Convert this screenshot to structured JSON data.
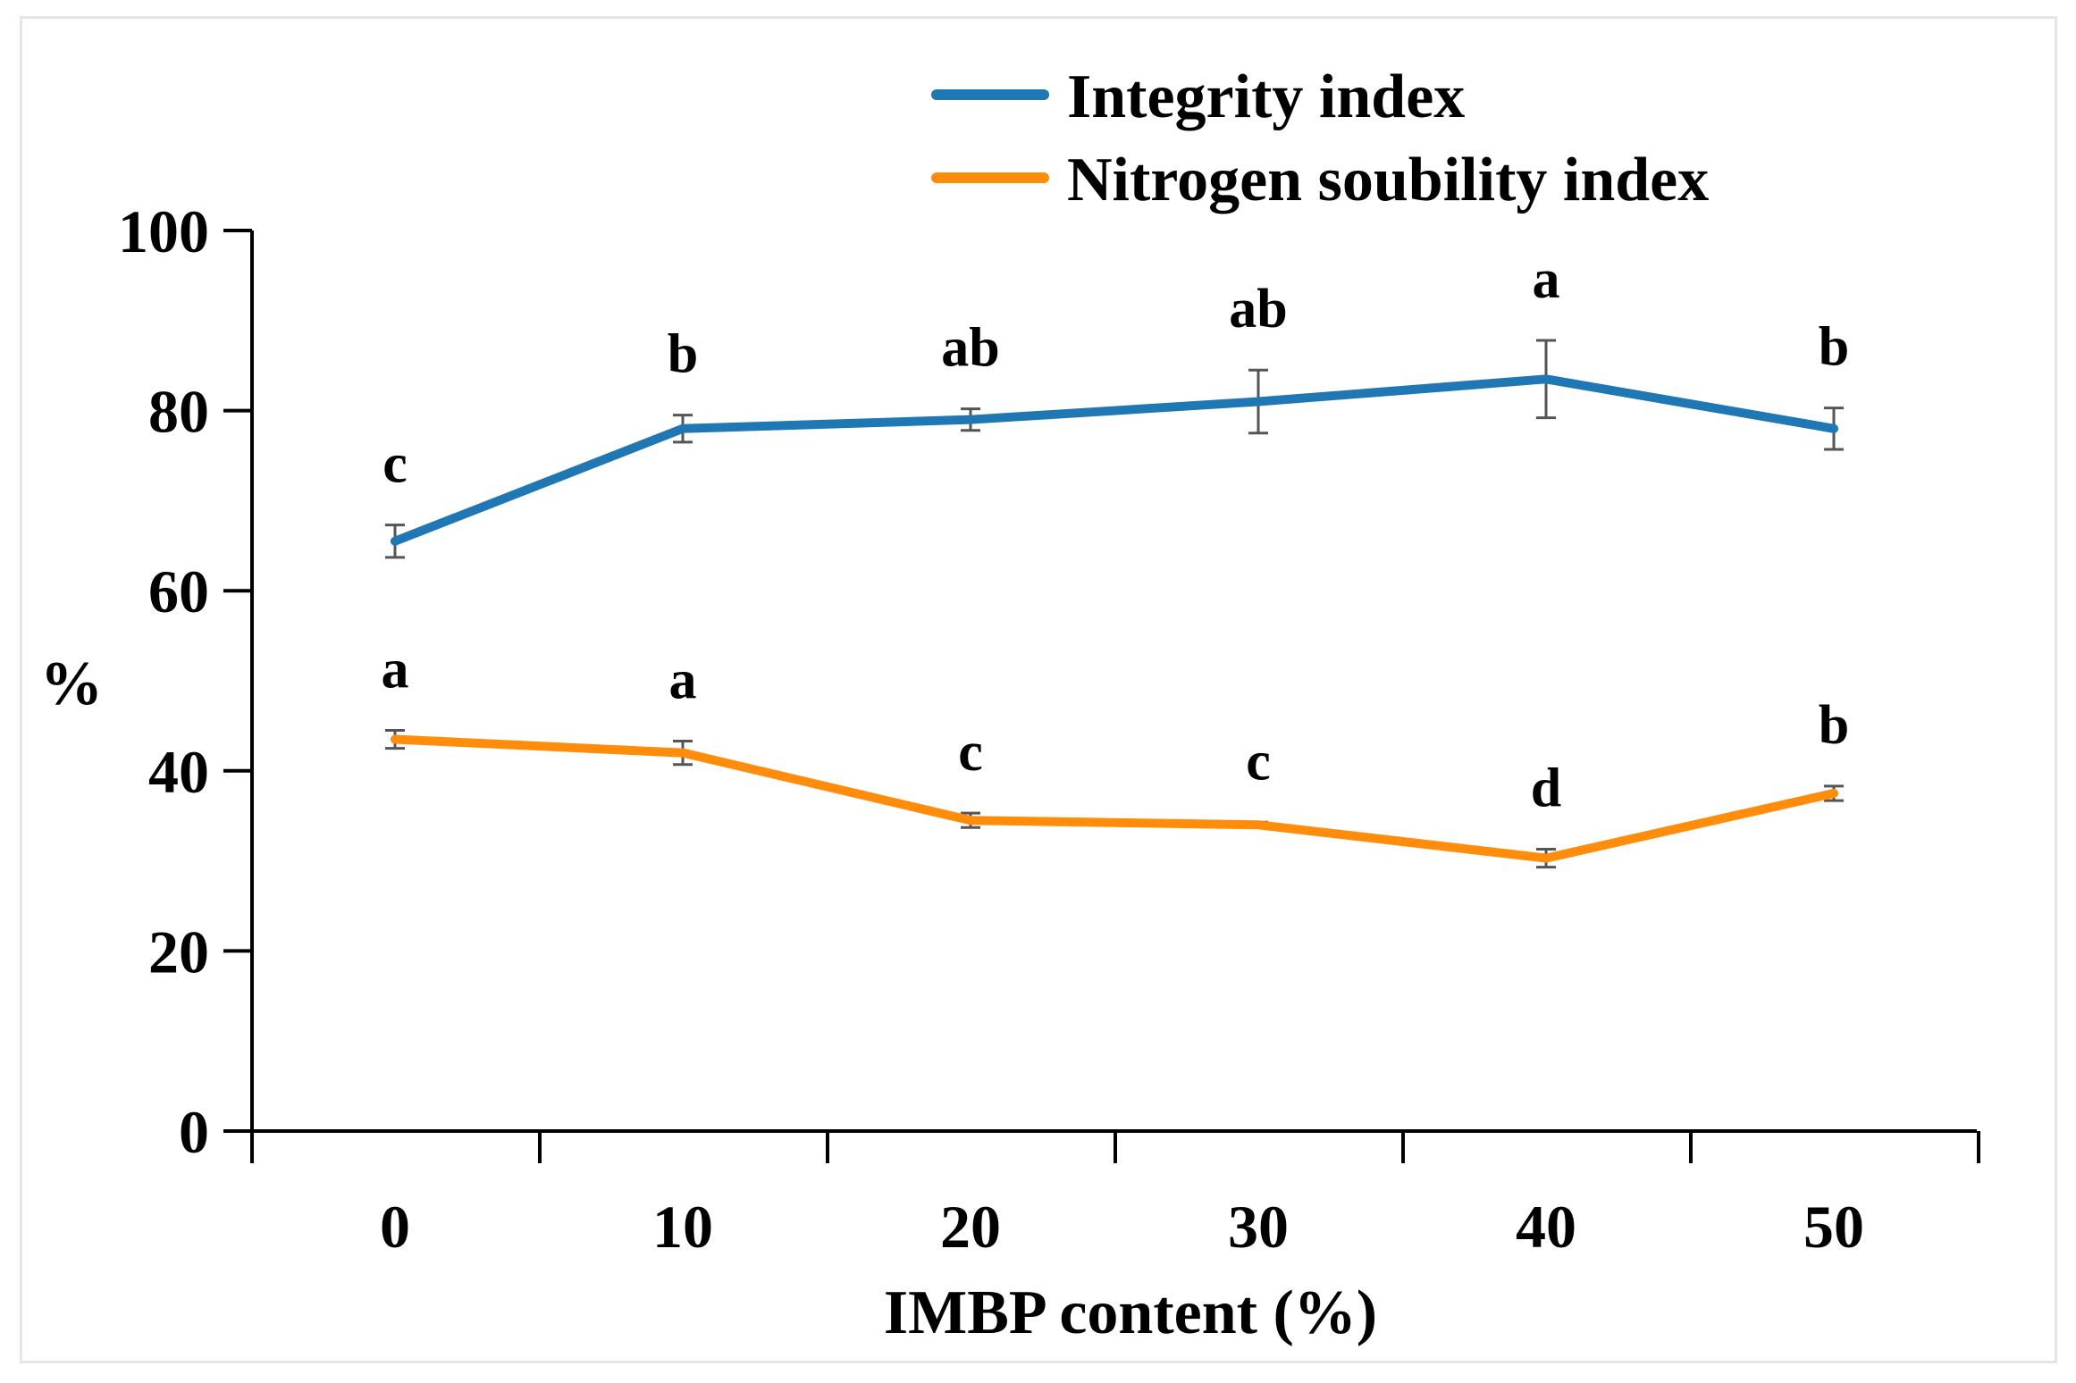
{
  "chart_data": {
    "type": "line",
    "title": "",
    "xlabel": "IMBP content (%)",
    "ylabel": "%",
    "categories": [
      "0",
      "10",
      "20",
      "30",
      "40",
      "50"
    ],
    "x": [
      0,
      10,
      20,
      30,
      40,
      50
    ],
    "ylim": [
      0,
      100
    ],
    "yticks": [
      "0",
      "20",
      "40",
      "60",
      "80",
      "100"
    ],
    "grid": false,
    "legend_position": "top-right",
    "series": [
      {
        "name": "Integrity index",
        "color": "#1f77b4",
        "values": [
          65.5,
          78,
          79,
          81,
          83.5,
          78
        ],
        "errors": [
          1.8,
          1.5,
          1.2,
          3.5,
          4.3,
          2.3
        ],
        "letters": [
          "c",
          "b",
          "ab",
          "ab",
          "a",
          "b"
        ]
      },
      {
        "name": "Nitrogen soubility index",
        "color": "#ff8c0a",
        "values": [
          43.5,
          42,
          34.5,
          34,
          30.3,
          37.5
        ],
        "errors": [
          1.0,
          1.3,
          0.8,
          0.3,
          1.0,
          0.8
        ],
        "letters": [
          "a",
          "a",
          "c",
          "c",
          "d",
          "b"
        ]
      }
    ]
  }
}
